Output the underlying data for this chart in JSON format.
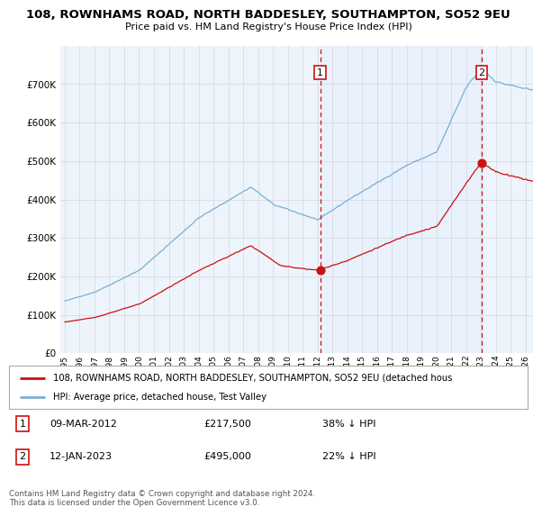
{
  "title": "108, ROWNHAMS ROAD, NORTH BADDESLEY, SOUTHAMPTON, SO52 9EU",
  "subtitle": "Price paid vs. HM Land Registry's House Price Index (HPI)",
  "ylim": [
    0,
    800000
  ],
  "yticks": [
    0,
    100000,
    200000,
    300000,
    400000,
    500000,
    600000,
    700000,
    800000
  ],
  "xlim_start": 1994.7,
  "xlim_end": 2026.5,
  "hpi_color": "#7aafd4",
  "hpi_fill": "#ddeeff",
  "price_color": "#cc1111",
  "bg_color": "#ffffff",
  "chart_bg": "#eef4fb",
  "grid_color": "#cccccc",
  "shade_color": "#ddeeff",
  "sale1_x": 2012.19,
  "sale1_price": 217500,
  "sale2_x": 2023.04,
  "sale2_price": 495000,
  "legend_property": "108, ROWNHAMS ROAD, NORTH BADDESLEY, SOUTHAMPTON, SO52 9EU (detached hous",
  "legend_hpi": "HPI: Average price, detached house, Test Valley",
  "footer": "Contains HM Land Registry data © Crown copyright and database right 2024.\nThis data is licensed under the Open Government Licence v3.0.",
  "table_row1": [
    "1",
    "09-MAR-2012",
    "£217,500",
    "38% ↓ HPI"
  ],
  "table_row2": [
    "2",
    "12-JAN-2023",
    "£495,000",
    "22% ↓ HPI"
  ],
  "hpi_seed": 42,
  "prop_seed": 123
}
